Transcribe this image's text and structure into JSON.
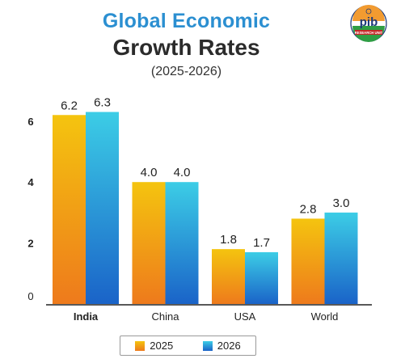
{
  "header": {
    "title_line1": "Global Economic",
    "title_line2": "Growth Rates",
    "subtitle": "(2025-2026)",
    "logo_text": "pib",
    "logo_subtext": "RESEARCH UNIT"
  },
  "colors": {
    "title_blue": "#2b8fd1",
    "series_2025_top": "#f4c40f",
    "series_2025_bottom": "#ee7a1c",
    "series_2026_top": "#3ccde6",
    "series_2026_bottom": "#1a63c8",
    "axis": "#222222"
  },
  "chart_data": {
    "type": "bar",
    "title": "Global Economic Growth Rates",
    "subtitle": "(2025-2026)",
    "categories": [
      "India",
      "China",
      "USA",
      "World"
    ],
    "series": [
      {
        "name": "2025",
        "values": [
          6.2,
          4.0,
          1.8,
          2.8
        ],
        "labels": [
          "6.2",
          "4.0",
          "1.8",
          "2.8"
        ]
      },
      {
        "name": "2026",
        "values": [
          6.3,
          4.0,
          1.7,
          3.0
        ],
        "labels": [
          "6.3",
          "4.0",
          "1.7",
          "3.0"
        ]
      }
    ],
    "ylim": [
      0,
      7
    ],
    "yticks": [
      0,
      2,
      4,
      6
    ],
    "xlabel": "",
    "ylabel": "",
    "grid": false,
    "legend_position": "bottom-center",
    "bold_categories": [
      "India"
    ]
  }
}
